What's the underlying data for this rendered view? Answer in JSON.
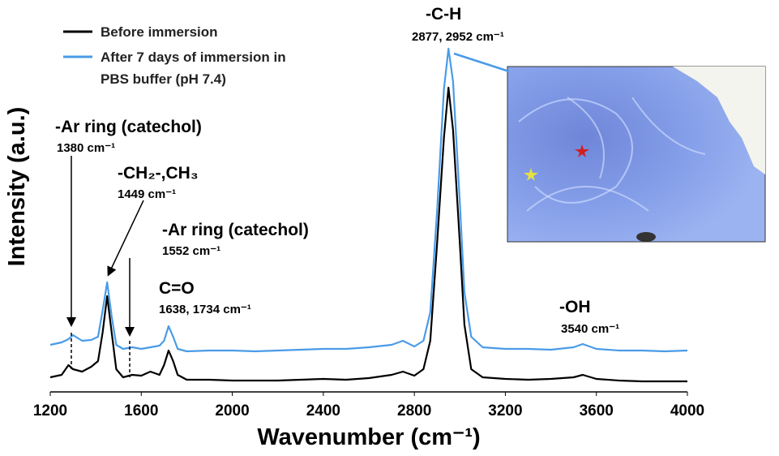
{
  "chart_data": {
    "type": "line",
    "xlabel": "Wavenumber (cm⁻¹)",
    "ylabel": "Intensity (a.u.)",
    "x": [
      1200,
      1250,
      1280,
      1300,
      1340,
      1380,
      1410,
      1430,
      1450,
      1470,
      1490,
      1520,
      1560,
      1600,
      1640,
      1680,
      1700,
      1720,
      1740,
      1760,
      1800,
      1900,
      2000,
      2100,
      2200,
      2300,
      2400,
      2500,
      2600,
      2700,
      2750,
      2800,
      2840,
      2870,
      2900,
      2930,
      2950,
      2970,
      3000,
      3020,
      3050,
      3100,
      3200,
      3300,
      3400,
      3500,
      3540,
      3600,
      3700,
      3800,
      3900,
      4000
    ],
    "series": [
      {
        "name": "Before immersion",
        "color": "#000000",
        "values": [
          3.6,
          4.2,
          6.6,
          5.6,
          5,
          6.2,
          7.6,
          14.6,
          23.6,
          14.6,
          5.6,
          3.6,
          4.2,
          4,
          5,
          4.2,
          6.6,
          10.2,
          7.6,
          4.2,
          3,
          3,
          2.8,
          2.8,
          2.8,
          3,
          3.2,
          3,
          3.4,
          4.2,
          5,
          4,
          5.6,
          12.6,
          36.6,
          62.6,
          75,
          64.6,
          36.6,
          16.6,
          5.6,
          3.6,
          3.2,
          3,
          3.2,
          3.6,
          4.2,
          3.2,
          2.8,
          2.6,
          2.6,
          2.6
        ]
      },
      {
        "name": "After 7 days of immersion in PBS buffer (pH 7.4)",
        "color": "#4a9be8",
        "values": [
          11.6,
          12.2,
          13,
          14,
          12.6,
          12.8,
          13.6,
          20,
          27,
          18.6,
          11.6,
          10.6,
          11,
          10.6,
          11,
          11.4,
          12.6,
          16.2,
          13.6,
          10.6,
          10,
          10.2,
          10.2,
          10,
          10.2,
          10.4,
          10.6,
          10.6,
          11,
          11.6,
          12.6,
          11.2,
          12.6,
          19.6,
          44.6,
          74.6,
          84.6,
          76.6,
          46.6,
          24.6,
          13.6,
          11,
          10.6,
          10.6,
          10.4,
          11,
          11.8,
          10.6,
          10.2,
          10.2,
          10,
          10.2
        ]
      }
    ],
    "xlim": [
      1200,
      4000
    ],
    "xticks": [
      1200,
      1600,
      2000,
      2400,
      2800,
      3200,
      3600,
      4000
    ],
    "ylim": [
      0,
      100
    ],
    "annotations": [
      {
        "label": "-Ar ring (catechol)",
        "detail": "1380 cm⁻¹"
      },
      {
        "label": "-CH₂-,CH₃",
        "detail": "1449 cm⁻¹"
      },
      {
        "label": "-Ar ring (catechol)",
        "detail": "1552 cm⁻¹"
      },
      {
        "label": "C=O",
        "detail": "1638, 1734 cm⁻¹"
      },
      {
        "label": "-C-H",
        "detail": "2877, 2952 cm⁻¹"
      },
      {
        "label": "-OH",
        "detail": "3540 cm⁻¹"
      }
    ]
  }
}
